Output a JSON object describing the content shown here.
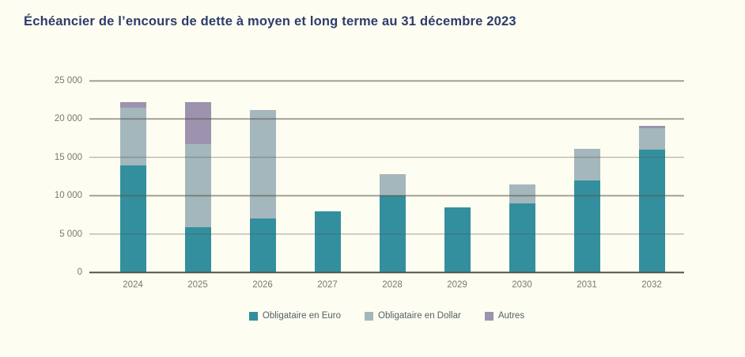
{
  "page": {
    "background_color": "#FEFDF1"
  },
  "colors": {
    "title": "#2D3C6C",
    "grid": "#8F8D82",
    "axis_zero": "#57554B",
    "tick_label": "#7B7970",
    "legend_text": "#536069"
  },
  "chart_data": {
    "type": "bar",
    "stacked": true,
    "title": "Échéancier de l’encours de dette à moyen et long terme au 31 décembre 2023",
    "categories": [
      "2024",
      "2025",
      "2026",
      "2027",
      "2028",
      "2029",
      "2030",
      "2031",
      "2032"
    ],
    "series": [
      {
        "name": "Obligataire en Euro",
        "color": "#338F9E",
        "values": [
          13900,
          5900,
          7000,
          8000,
          10000,
          8500,
          9000,
          12000,
          16000
        ]
      },
      {
        "name": "Obligataire en Dollar",
        "color": "#A4B7BC",
        "values": [
          7600,
          10800,
          14200,
          0,
          2800,
          0,
          2500,
          4100,
          2800
        ]
      },
      {
        "name": "Autres",
        "color": "#9D93AE",
        "values": [
          700,
          5500,
          0,
          0,
          0,
          0,
          0,
          0,
          300
        ]
      }
    ],
    "totals": [
      22200,
      22200,
      21200,
      8000,
      12800,
      8500,
      11500,
      16100,
      19100
    ],
    "ylim": [
      0,
      25000
    ],
    "y_ticks": [
      {
        "value": 0,
        "label": "0"
      },
      {
        "value": 5000,
        "label": "5 000"
      },
      {
        "value": 10000,
        "label": "10 000"
      },
      {
        "value": 15000,
        "label": "15 000"
      },
      {
        "value": 20000,
        "label": "20 000"
      },
      {
        "value": 25000,
        "label": "25 000"
      }
    ],
    "grid": "horizontal",
    "legend_position": "bottom"
  }
}
